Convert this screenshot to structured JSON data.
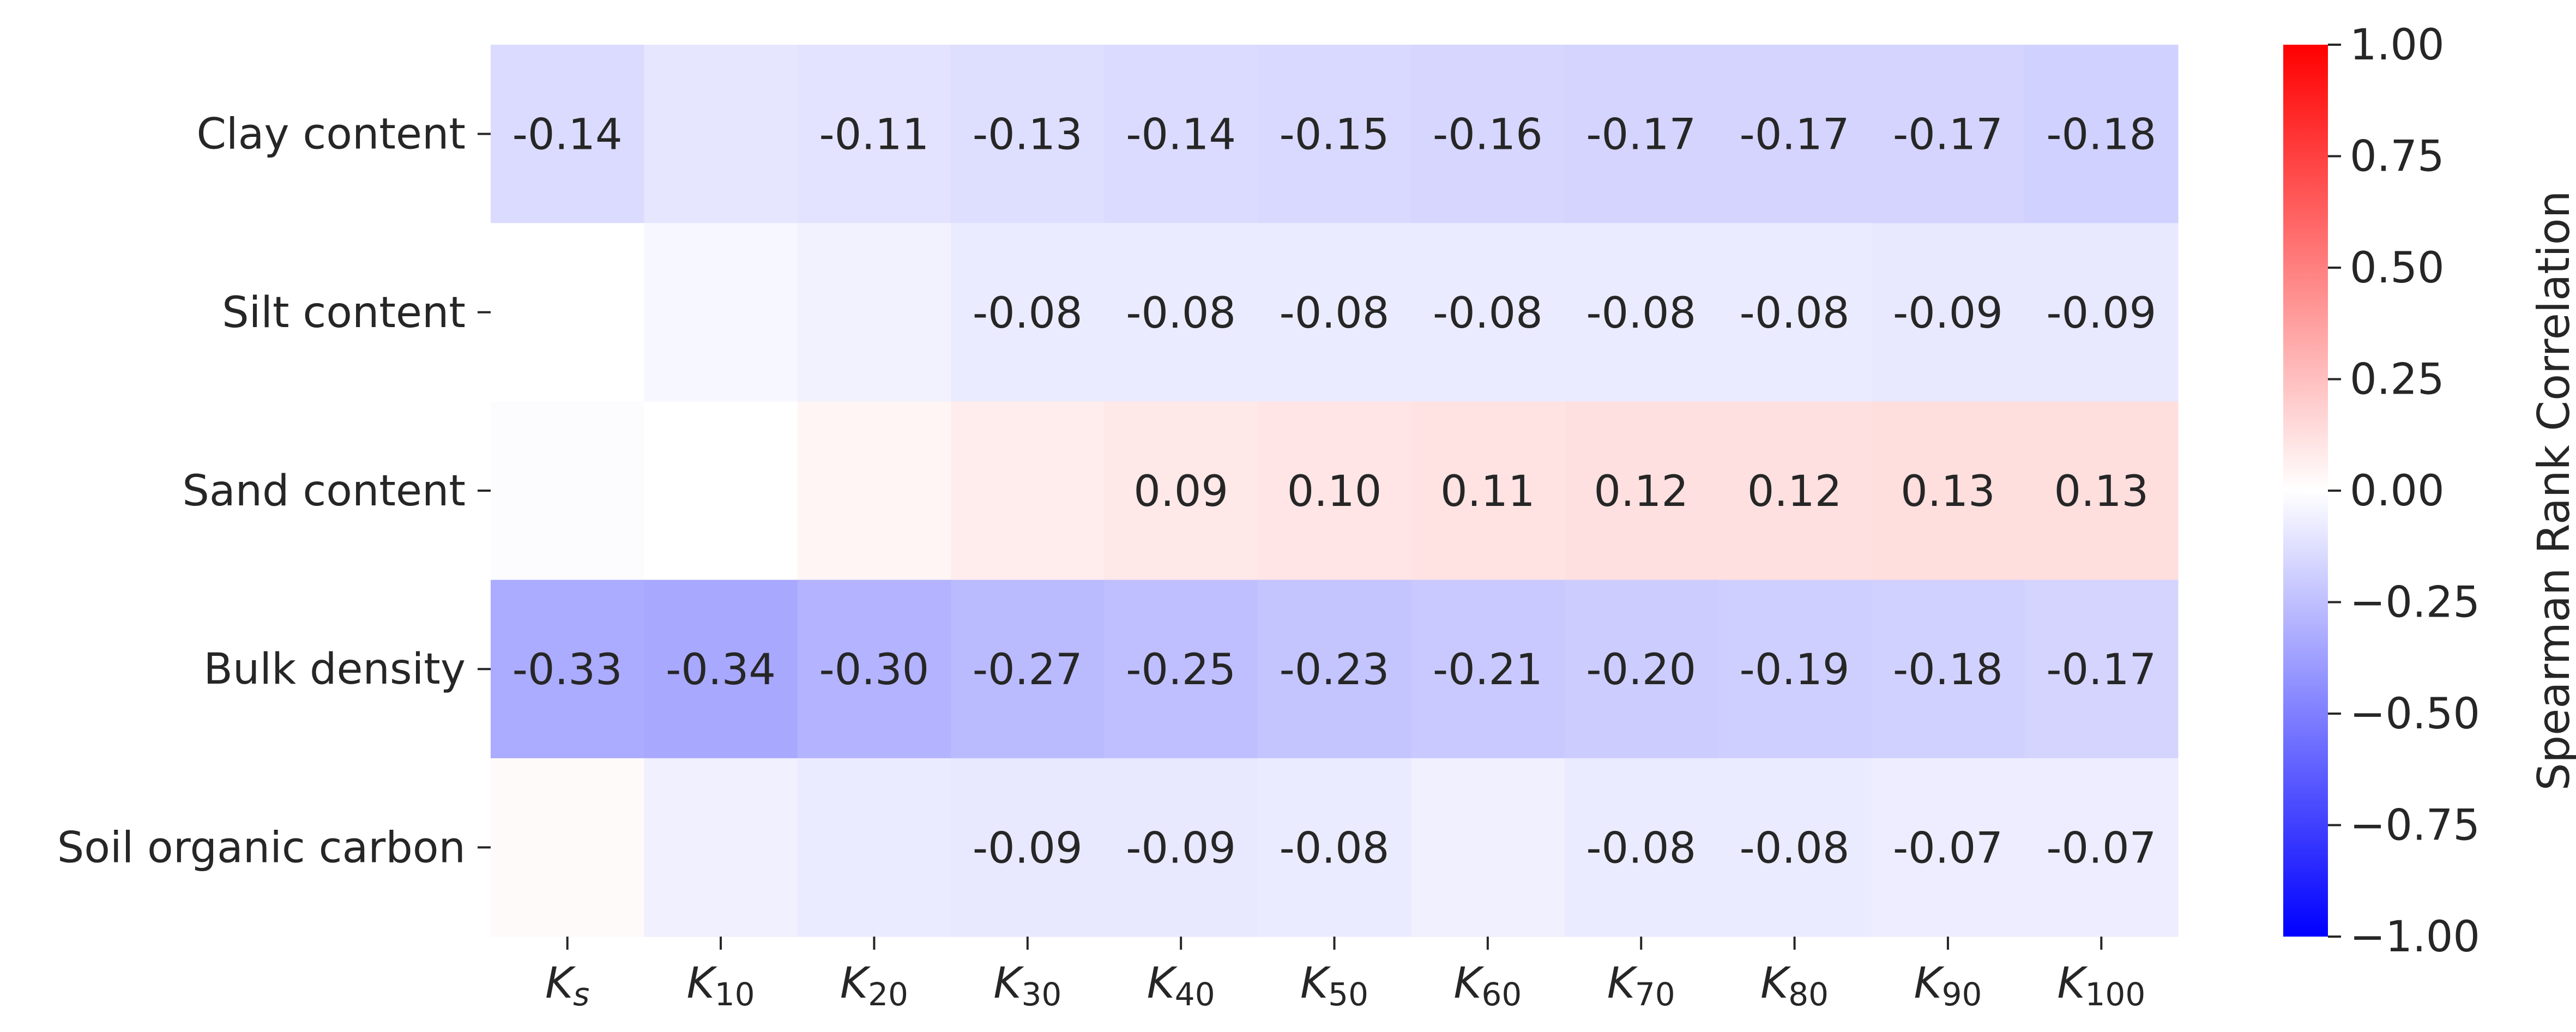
{
  "chart_data": {
    "type": "heatmap",
    "rows": [
      "Clay content",
      "Silt content",
      "Sand content",
      "Bulk density",
      "Soil organic carbon"
    ],
    "columns": [
      {
        "base": "K",
        "sub": "s"
      },
      {
        "base": "K",
        "sub": "10"
      },
      {
        "base": "K",
        "sub": "20"
      },
      {
        "base": "K",
        "sub": "30"
      },
      {
        "base": "K",
        "sub": "40"
      },
      {
        "base": "K",
        "sub": "50"
      },
      {
        "base": "K",
        "sub": "60"
      },
      {
        "base": "K",
        "sub": "70"
      },
      {
        "base": "K",
        "sub": "80"
      },
      {
        "base": "K",
        "sub": "90"
      },
      {
        "base": "K",
        "sub": "100"
      }
    ],
    "values": [
      [
        -0.14,
        -0.1,
        -0.11,
        -0.13,
        -0.14,
        -0.15,
        -0.16,
        -0.17,
        -0.17,
        -0.17,
        -0.18
      ],
      [
        0.0,
        -0.03,
        -0.05,
        -0.08,
        -0.08,
        -0.08,
        -0.08,
        -0.08,
        -0.08,
        -0.09,
        -0.09
      ],
      [
        -0.01,
        0.0,
        0.04,
        0.07,
        0.09,
        0.1,
        0.11,
        0.12,
        0.12,
        0.13,
        0.13
      ],
      [
        -0.33,
        -0.34,
        -0.3,
        -0.27,
        -0.25,
        -0.23,
        -0.21,
        -0.2,
        -0.19,
        -0.18,
        -0.17
      ],
      [
        0.02,
        -0.06,
        -0.08,
        -0.09,
        -0.09,
        -0.08,
        -0.06,
        -0.08,
        -0.08,
        -0.07,
        -0.07
      ]
    ],
    "annotations": [
      [
        "-0.14",
        "",
        "-0.11",
        "-0.13",
        "-0.14",
        "-0.15",
        "-0.16",
        "-0.17",
        "-0.17",
        "-0.17",
        "-0.18"
      ],
      [
        "",
        "",
        "",
        "-0.08",
        "-0.08",
        "-0.08",
        "-0.08",
        "-0.08",
        "-0.08",
        "-0.09",
        "-0.09"
      ],
      [
        "",
        "",
        "",
        "",
        "0.09",
        "0.10",
        "0.11",
        "0.12",
        "0.12",
        "0.13",
        "0.13"
      ],
      [
        "-0.33",
        "-0.34",
        "-0.30",
        "-0.27",
        "-0.25",
        "-0.23",
        "-0.21",
        "-0.20",
        "-0.19",
        "-0.18",
        "-0.17"
      ],
      [
        "",
        "",
        "",
        "-0.09",
        "-0.09",
        "-0.08",
        "",
        "-0.08",
        "-0.08",
        "-0.07",
        "-0.07"
      ]
    ],
    "colormap": {
      "name": "bwr",
      "min": -1.0,
      "max": 1.0,
      "low_color": "#0000ff",
      "mid_color": "#ffffff",
      "high_color": "#ff0000"
    },
    "colorbar": {
      "label": "Spearman Rank Correlation",
      "ticks": [
        1.0,
        0.75,
        0.5,
        0.25,
        0.0,
        -0.25,
        -0.5,
        -0.75,
        -1.0
      ],
      "tick_labels": [
        "1.00",
        "0.75",
        "0.50",
        "0.25",
        "0.00",
        "−0.25",
        "−0.50",
        "−0.75",
        "−1.00"
      ],
      "placement": "right"
    }
  }
}
